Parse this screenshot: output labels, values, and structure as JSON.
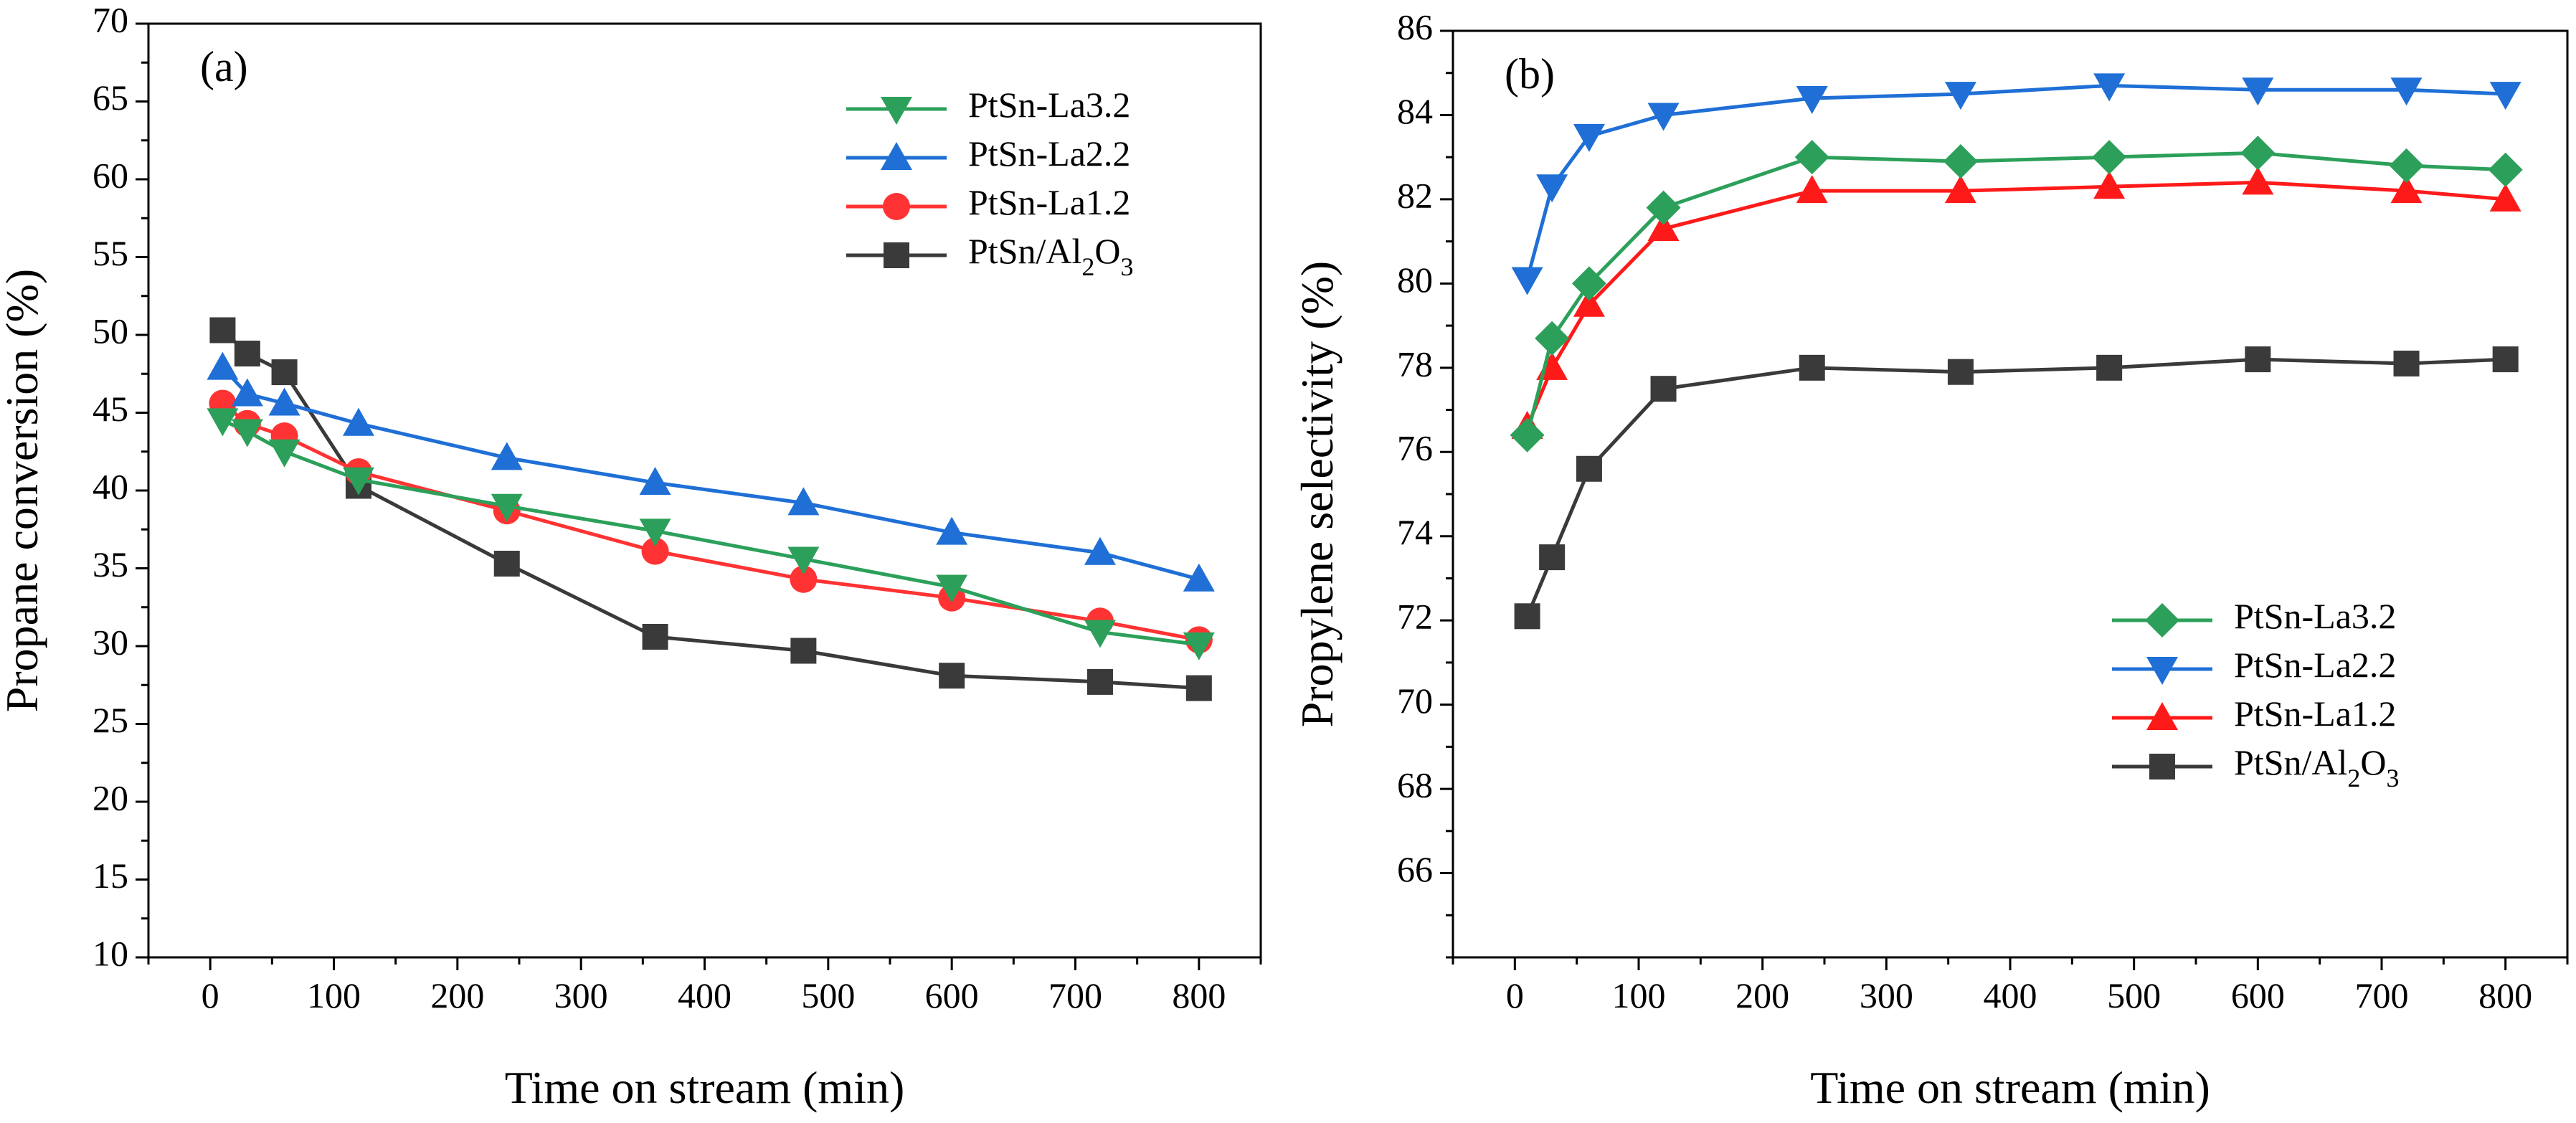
{
  "chart_data": [
    {
      "type": "line",
      "panel_label": "(a)",
      "xlabel": "Time on stream (min)",
      "ylabel": "Propane conversion (%)",
      "xlim": [
        -50,
        850
      ],
      "ylim": [
        10,
        70
      ],
      "xticks": [
        0,
        100,
        200,
        300,
        400,
        500,
        600,
        700,
        800
      ],
      "yticks": [
        10,
        15,
        20,
        25,
        30,
        35,
        40,
        45,
        50,
        55,
        60,
        65,
        70
      ],
      "legend_position": "top-right",
      "x": [
        10,
        30,
        60,
        120,
        240,
        360,
        480,
        600,
        720,
        800
      ],
      "series": [
        {
          "name": "PtSn-La3.2",
          "name_main": "PtSn-La3.2",
          "color": "#2ca05a",
          "marker": "triangle-down",
          "values": [
            44.5,
            43.8,
            42.5,
            40.7,
            39.0,
            37.4,
            35.6,
            33.8,
            30.9,
            30.1
          ]
        },
        {
          "name": "PtSn-La2.2",
          "name_main": "PtSn-La2.2",
          "color": "#1f6fd6",
          "marker": "triangle-up",
          "values": [
            47.9,
            46.2,
            45.6,
            44.3,
            42.1,
            40.5,
            39.2,
            37.3,
            36.0,
            34.3
          ]
        },
        {
          "name": "PtSn-La1.2",
          "name_main": "PtSn-La1.2",
          "color": "#ff3333",
          "marker": "circle",
          "values": [
            45.6,
            44.3,
            43.5,
            41.2,
            38.7,
            36.1,
            34.3,
            33.1,
            31.6,
            30.4
          ]
        },
        {
          "name": "PtSn/Al2O3",
          "name_main": "PtSn/Al",
          "name_sub1": "2",
          "name_mid": "O",
          "name_sub2": "3",
          "color": "#3a3a3a",
          "marker": "square",
          "values": [
            50.3,
            48.8,
            47.6,
            40.3,
            35.3,
            30.6,
            29.7,
            28.1,
            27.7,
            27.3
          ]
        }
      ]
    },
    {
      "type": "line",
      "panel_label": "(b)",
      "xlabel": "Time on stream (min)",
      "ylabel": "Propylene selectivity (%)",
      "xlim": [
        -50,
        850
      ],
      "ylim": [
        64,
        86
      ],
      "xticks": [
        0,
        100,
        200,
        300,
        400,
        500,
        600,
        700,
        800
      ],
      "yticks": [
        66,
        68,
        70,
        72,
        74,
        76,
        78,
        80,
        82,
        84,
        86
      ],
      "legend_position": "bottom-right",
      "x": [
        10,
        30,
        60,
        120,
        240,
        360,
        480,
        600,
        720,
        800
      ],
      "series": [
        {
          "name": "PtSn-La3.2",
          "name_main": "PtSn-La3.2",
          "color": "#2ca05a",
          "marker": "diamond",
          "values": [
            76.4,
            78.7,
            80.0,
            81.8,
            83.0,
            82.9,
            83.0,
            83.1,
            82.8,
            82.7
          ]
        },
        {
          "name": "PtSn-La2.2",
          "name_main": "PtSn-La2.2",
          "color": "#1f6fd6",
          "marker": "triangle-down",
          "values": [
            80.1,
            82.3,
            83.5,
            84.0,
            84.4,
            84.5,
            84.7,
            84.6,
            84.6,
            84.5
          ]
        },
        {
          "name": "PtSn-La1.2",
          "name_main": "PtSn-La1.2",
          "color": "#ff1a1a",
          "marker": "triangle-up",
          "values": [
            76.6,
            78.0,
            79.5,
            81.3,
            82.2,
            82.2,
            82.3,
            82.4,
            82.2,
            82.0
          ]
        },
        {
          "name": "PtSn/Al2O3",
          "name_main": "PtSn/Al",
          "name_sub1": "2",
          "name_mid": "O",
          "name_sub2": "3",
          "color": "#3a3a3a",
          "marker": "square",
          "values": [
            72.1,
            73.5,
            75.6,
            77.5,
            78.0,
            77.9,
            78.0,
            78.2,
            78.1,
            78.2
          ]
        }
      ]
    }
  ]
}
